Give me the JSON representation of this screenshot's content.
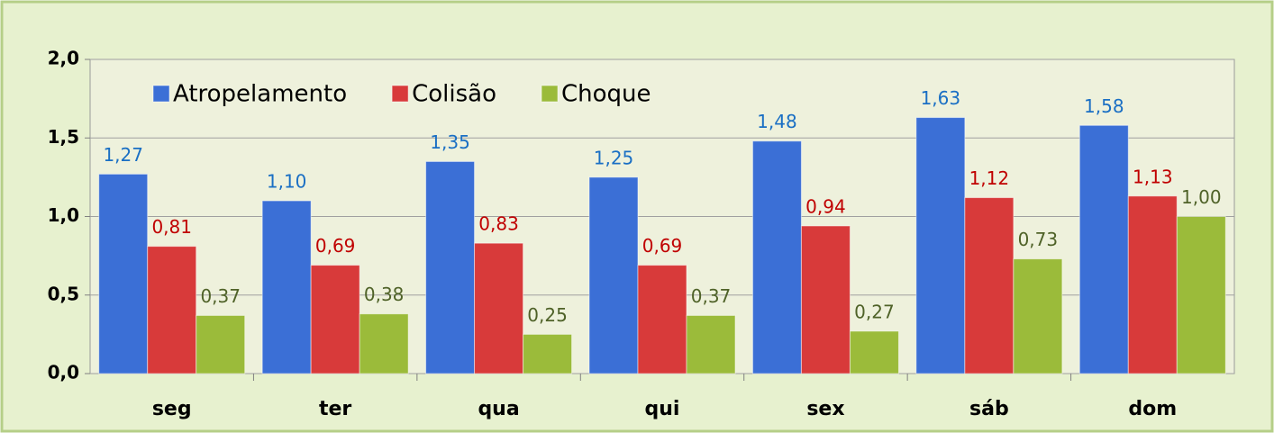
{
  "chart_data": {
    "type": "bar",
    "categories": [
      "seg",
      "ter",
      "qua",
      "qui",
      "sex",
      "sáb",
      "dom"
    ],
    "series": [
      {
        "name": "Atropelamento",
        "color": "#3b6fd6",
        "label_color": "#1a6fc4",
        "values": [
          1.27,
          1.1,
          1.35,
          1.25,
          1.48,
          1.63,
          1.58
        ],
        "value_labels": [
          "1,27",
          "1,10",
          "1,35",
          "1,25",
          "1,48",
          "1,63",
          "1,58"
        ]
      },
      {
        "name": "Colisão",
        "color": "#d83a3a",
        "label_color": "#c00000",
        "values": [
          0.81,
          0.69,
          0.83,
          0.69,
          0.94,
          1.12,
          1.13
        ],
        "value_labels": [
          "0,81",
          "0,69",
          "0,83",
          "0,69",
          "0,94",
          "1,12",
          "1,13"
        ]
      },
      {
        "name": "Choque",
        "color": "#9bbb3a",
        "label_color": "#4f6228",
        "values": [
          0.37,
          0.38,
          0.25,
          0.37,
          0.27,
          0.73,
          1.0
        ],
        "value_labels": [
          "0,37",
          "0,38",
          "0,25",
          "0,37",
          "0,27",
          "0,73",
          "1,00"
        ]
      }
    ],
    "ylim": [
      0,
      2
    ],
    "yticks": [
      {
        "value": 0,
        "label": "0,0"
      },
      {
        "value": 0.5,
        "label": "0,5"
      },
      {
        "value": 1,
        "label": "1,0"
      },
      {
        "value": 1.5,
        "label": "1,5"
      },
      {
        "value": 2,
        "label": "2,0"
      }
    ],
    "grid": true,
    "legend": "top-left"
  }
}
